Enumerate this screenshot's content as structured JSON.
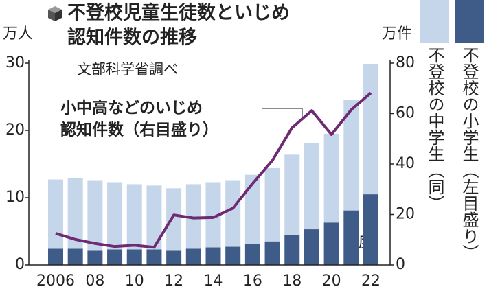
{
  "chart_data": {
    "type": "bar",
    "title": [
      "不登校児童生徒数といじめ",
      "認知件数の推移"
    ],
    "subtitle": "文部科学省調べ",
    "y_label": "万人",
    "y2_label": "万件",
    "x_label": "年度",
    "annotation": [
      "小中高などのいじめ",
      "認知件数（右目盛り）"
    ],
    "categories": [
      "2006",
      null,
      "08",
      null,
      "10",
      null,
      "12",
      null,
      "14",
      null,
      "16",
      null,
      "18",
      null,
      "20",
      null,
      "22"
    ],
    "series": [
      {
        "name": "不登校の小学生（左目盛り）",
        "type": "bar",
        "axis": "y",
        "color": "#3f5b88",
        "values": [
          2.4,
          2.4,
          2.2,
          2.3,
          2.3,
          2.3,
          2.2,
          2.4,
          2.6,
          2.7,
          3.1,
          3.5,
          4.5,
          5.3,
          6.3,
          8.1,
          10.5
        ]
      },
      {
        "name": "不登校の中学生（同）",
        "type": "bar",
        "axis": "y",
        "color": "#c6d6ea",
        "values": [
          10.3,
          10.5,
          10.4,
          10.0,
          9.7,
          9.5,
          9.2,
          9.6,
          9.7,
          9.9,
          10.3,
          10.9,
          11.9,
          12.8,
          13.2,
          16.4,
          19.4
        ]
      },
      {
        "name": "小中高などのいじめ認知件数",
        "type": "line",
        "axis": "y2",
        "color": "#6e2a72",
        "values": [
          12.5,
          10.1,
          8.5,
          7.3,
          7.8,
          7.0,
          19.8,
          18.6,
          18.8,
          22.5,
          32.3,
          41.4,
          54.4,
          61.2,
          51.7,
          61.5,
          68.2
        ]
      }
    ],
    "ylim": [
      0,
      30
    ],
    "yticks": [
      0,
      10,
      20,
      30
    ],
    "y2lim": [
      0,
      80
    ],
    "y2ticks": [
      0,
      20,
      40,
      60,
      80
    ],
    "grid": false
  }
}
